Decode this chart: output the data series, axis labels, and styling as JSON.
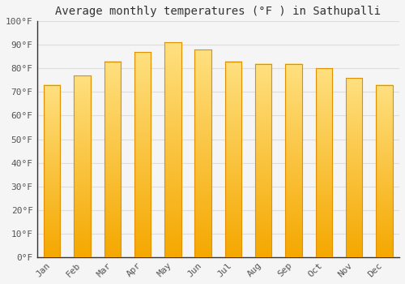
{
  "title": "Average monthly temperatures (°F ) in Sathupalli",
  "months": [
    "Jan",
    "Feb",
    "Mar",
    "Apr",
    "May",
    "Jun",
    "Jul",
    "Aug",
    "Sep",
    "Oct",
    "Nov",
    "Dec"
  ],
  "values": [
    73,
    77,
    83,
    87,
    91,
    88,
    83,
    82,
    82,
    80,
    76,
    73
  ],
  "bar_color_bottom": "#F5A800",
  "bar_color_top": "#FFD966",
  "ylim": [
    0,
    100
  ],
  "yticks": [
    0,
    10,
    20,
    30,
    40,
    50,
    60,
    70,
    80,
    90,
    100
  ],
  "ytick_labels": [
    "0°F",
    "10°F",
    "20°F",
    "30°F",
    "40°F",
    "50°F",
    "60°F",
    "70°F",
    "80°F",
    "90°F",
    "100°F"
  ],
  "background_color": "#f5f5f5",
  "grid_color": "#dddddd",
  "title_fontsize": 10,
  "tick_fontsize": 8,
  "font_family": "monospace",
  "bar_width": 0.55
}
